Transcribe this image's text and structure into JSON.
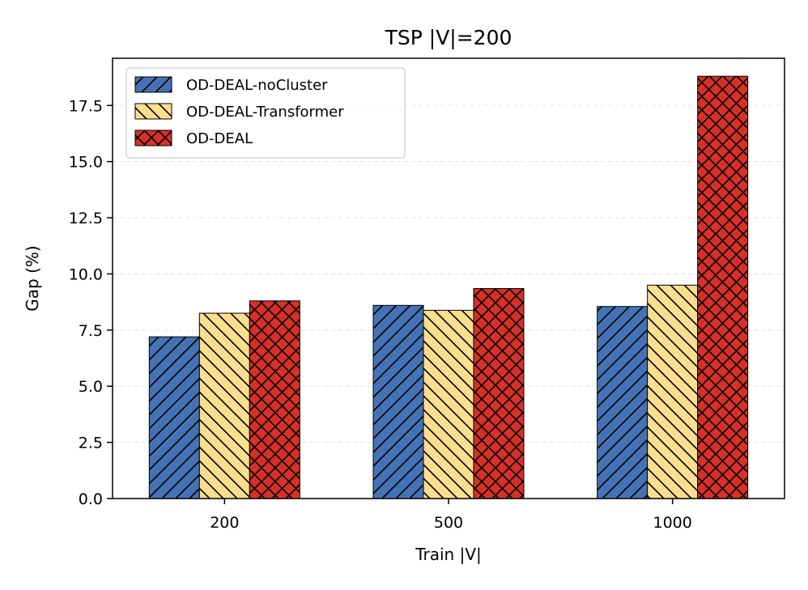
{
  "chart_data": {
    "type": "bar",
    "title": "TSP |V|=200",
    "xlabel": "Train |V|",
    "ylabel": "Gap (%)",
    "categories": [
      "200",
      "500",
      "1000"
    ],
    "ylim": [
      0,
      19.6
    ],
    "yticks": [
      "0.0",
      "2.5",
      "5.0",
      "7.5",
      "10.0",
      "12.5",
      "15.0",
      "17.5"
    ],
    "grid": "horizontal dashed",
    "legend_position": "top-left",
    "series": [
      {
        "name": "OD-DEAL-noCluster",
        "values": [
          7.2,
          8.6,
          8.55
        ],
        "color": "#4472b4",
        "hatch": "forward-diagonal"
      },
      {
        "name": "OD-DEAL-Transformer",
        "values": [
          8.25,
          8.38,
          9.5
        ],
        "color": "#fdde8e",
        "hatch": "back-diagonal"
      },
      {
        "name": "OD-DEAL",
        "values": [
          8.8,
          9.35,
          18.8
        ],
        "color": "#d73027",
        "hatch": "cross"
      }
    ]
  }
}
